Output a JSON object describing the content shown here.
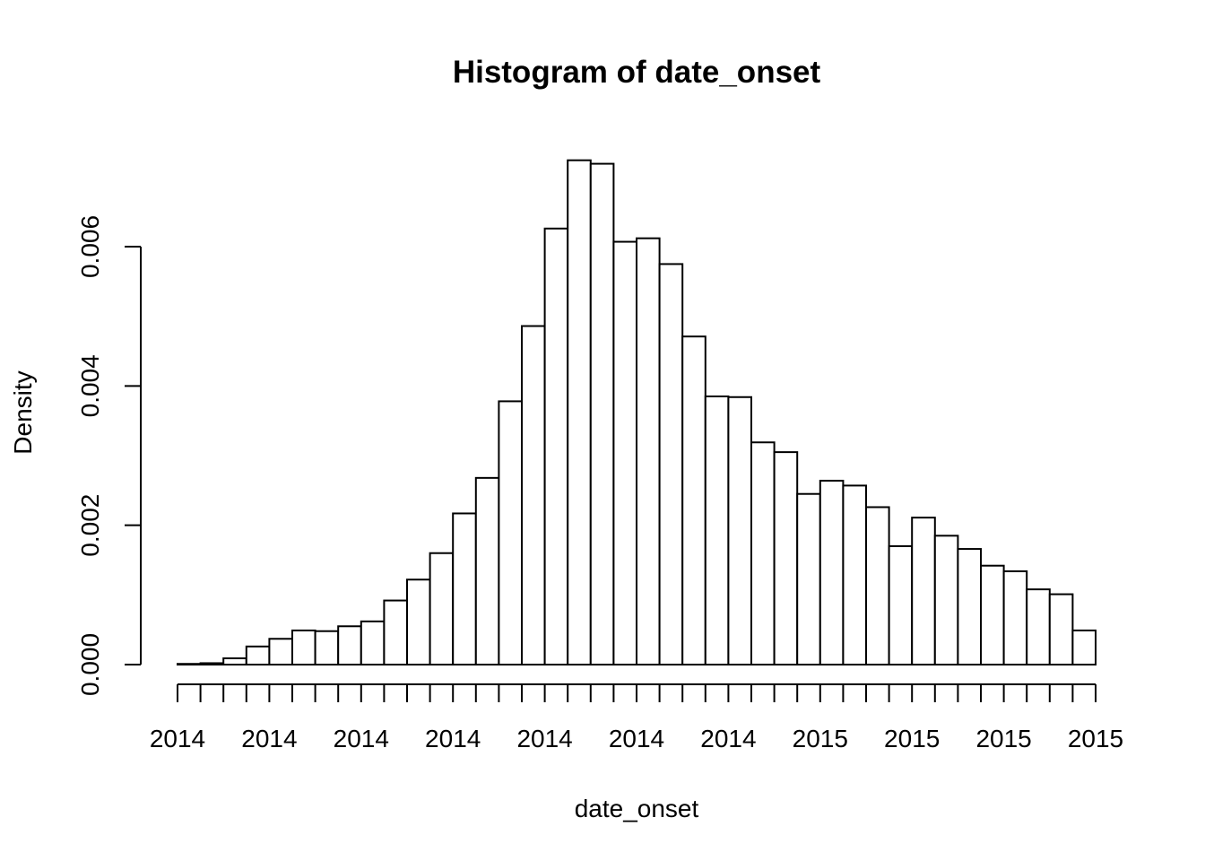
{
  "chart_data": {
    "type": "bar",
    "title": "Histogram of date_onset",
    "xlabel": "date_onset",
    "ylabel": "Density",
    "ylim": [
      0,
      0.0075
    ],
    "grid": false,
    "legend": "none",
    "y_ticks": [
      {
        "value": 0.0,
        "label": "0.000"
      },
      {
        "value": 0.002,
        "label": "0.002"
      },
      {
        "value": 0.004,
        "label": "0.004"
      },
      {
        "value": 0.006,
        "label": "0.006"
      }
    ],
    "x_tick_labels": [
      "2014",
      "2014",
      "2014",
      "2014",
      "2014",
      "2014",
      "2014",
      "2015",
      "2015",
      "2015",
      "2015"
    ],
    "values": [
      1e-05,
      2e-05,
      9e-05,
      0.00026,
      0.00037,
      0.00049,
      0.00048,
      0.00055,
      0.00062,
      0.00092,
      0.00122,
      0.0016,
      0.00217,
      0.00268,
      0.00378,
      0.00486,
      0.00626,
      0.00724,
      0.00719,
      0.00607,
      0.00612,
      0.00575,
      0.00471,
      0.00385,
      0.00384,
      0.00319,
      0.00305,
      0.00245,
      0.00264,
      0.00257,
      0.00226,
      0.0017,
      0.00211,
      0.00185,
      0.00166,
      0.00142,
      0.00134,
      0.00108,
      0.00101,
      0.00049
    ]
  },
  "colors": {
    "background": "#ffffff",
    "bar_fill": "#ffffff",
    "stroke": "#000000"
  }
}
